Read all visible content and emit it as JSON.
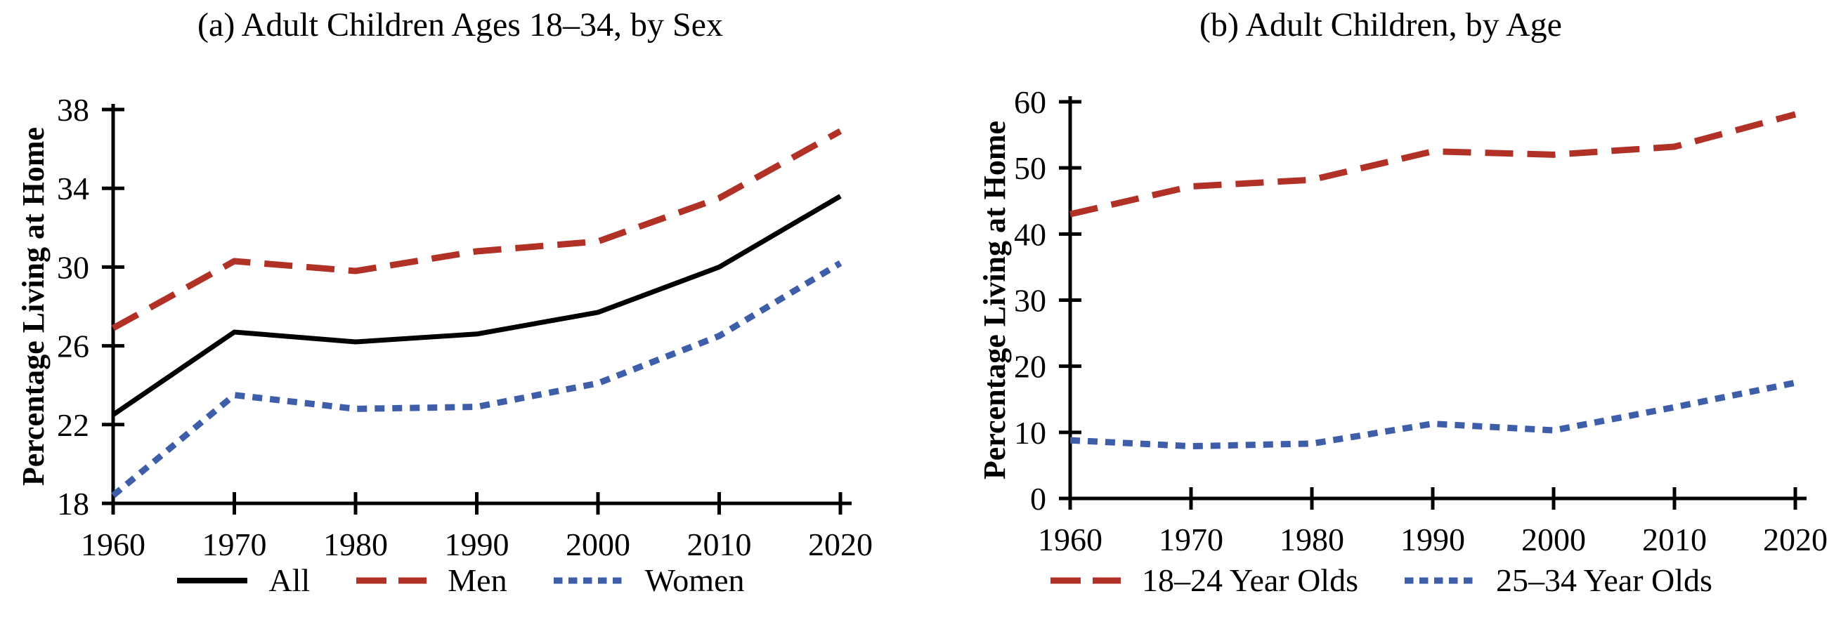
{
  "figure": {
    "background": "#ffffff",
    "text_color": "#000000"
  },
  "chart_data": [
    {
      "type": "line",
      "title": "(a) Adult Children Ages 18–34, by Sex",
      "xlabel": "",
      "ylabel": "Percentage  Living at Home",
      "x": [
        1960,
        1970,
        1980,
        1990,
        2000,
        2010,
        2020
      ],
      "ylim": [
        18,
        38
      ],
      "yticks": [
        18,
        22,
        26,
        30,
        34,
        38
      ],
      "grid": false,
      "legend_position": "bottom",
      "series": [
        {
          "name": "All",
          "color": "#000000",
          "style": "solid",
          "values": [
            22.5,
            26.7,
            26.2,
            26.6,
            27.7,
            30.0,
            33.6
          ]
        },
        {
          "name": "Men",
          "color": "#b23127",
          "style": "long-dash",
          "values": [
            26.9,
            30.3,
            29.8,
            30.8,
            31.3,
            33.5,
            36.9
          ]
        },
        {
          "name": "Women",
          "color": "#3f5ea9",
          "style": "short-dash",
          "values": [
            18.4,
            23.5,
            22.8,
            22.9,
            24.1,
            26.5,
            30.2
          ]
        }
      ]
    },
    {
      "type": "line",
      "title": "(b) Adult Children, by Age",
      "xlabel": "",
      "ylabel": "Percentage  Living at Home",
      "x": [
        1960,
        1970,
        1980,
        1990,
        2000,
        2010,
        2020
      ],
      "ylim": [
        0,
        60
      ],
      "yticks": [
        0,
        10,
        20,
        30,
        40,
        50,
        60
      ],
      "grid": false,
      "legend_position": "bottom",
      "series": [
        {
          "name": "18–24 Year Olds",
          "color": "#b23127",
          "style": "long-dash",
          "values": [
            43.0,
            47.2,
            48.2,
            52.5,
            52.0,
            53.2,
            58.1
          ]
        },
        {
          "name": "25–34 Year Olds",
          "color": "#3f5ea9",
          "style": "short-dash",
          "values": [
            8.8,
            7.9,
            8.3,
            11.3,
            10.3,
            13.8,
            17.5
          ]
        }
      ]
    }
  ]
}
